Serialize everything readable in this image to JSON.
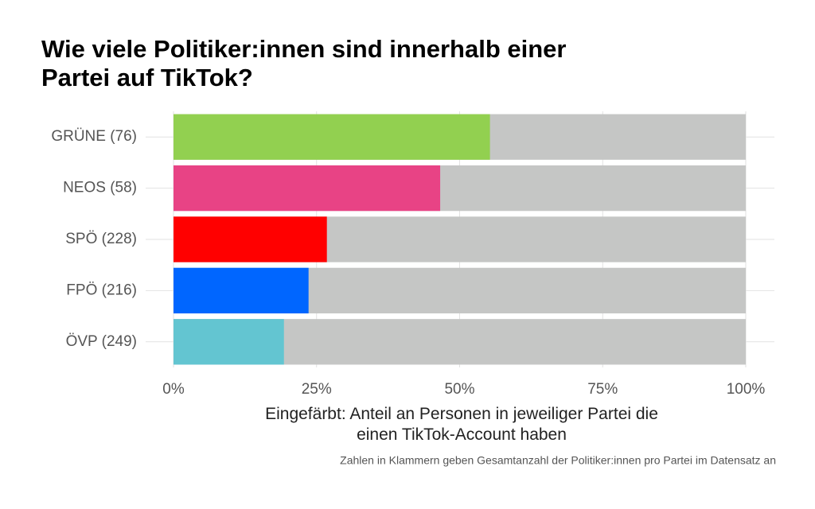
{
  "chart_data": {
    "type": "bar",
    "orientation": "horizontal",
    "title": "Wie viele Politiker:innen sind innerhalb einer Partei auf TikTok?",
    "categories": [
      "GRÜNE (76)",
      "NEOS (58)",
      "SPÖ (228)",
      "FPÖ (216)",
      "ÖVP (249)"
    ],
    "values": [
      55.3,
      46.6,
      26.8,
      23.6,
      19.3
    ],
    "colors": [
      "#92d050",
      "#e84385",
      "#ff0000",
      "#0066ff",
      "#63c5d1"
    ],
    "background_color": "#c5c6c5",
    "xlim": [
      0,
      100
    ],
    "xticks": [
      {
        "value": 0,
        "label": "0%"
      },
      {
        "value": 25,
        "label": "25%"
      },
      {
        "value": 50,
        "label": "50%"
      },
      {
        "value": 75,
        "label": "75%"
      },
      {
        "value": 100,
        "label": "100%"
      }
    ],
    "xlabel": "Eingefärbt: Anteil an Personen in jeweiliger Partei die einen TikTok-Account haben",
    "caption": "Zahlen in Klammern geben Gesamtanzahl der Politiker:innen pro Partei im Datensatz an",
    "grid": true
  }
}
